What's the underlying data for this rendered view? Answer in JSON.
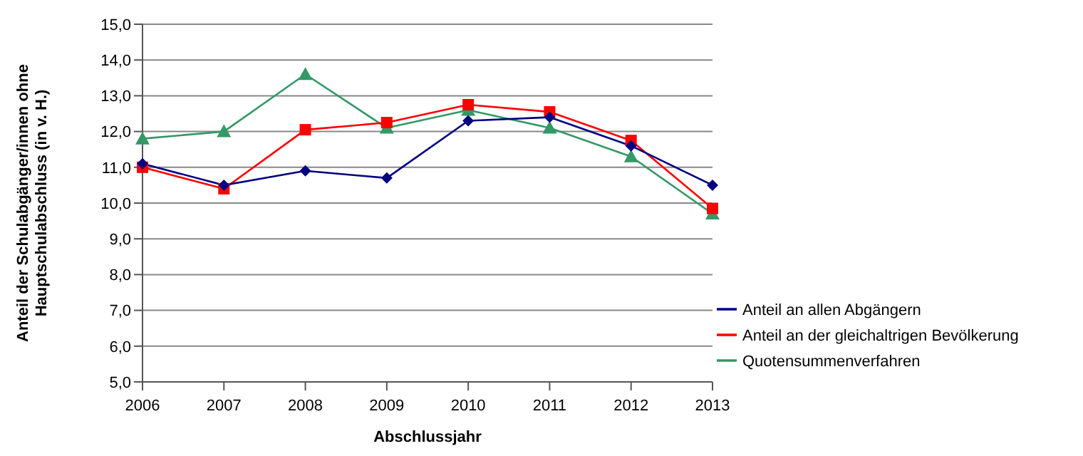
{
  "chart_data": {
    "type": "line",
    "xlabel": "Abschlussjahr",
    "ylabel": "Anteil der Schulabgänger/innen ohne\nHauptschulabschluss (in v. H.)",
    "categories": [
      "2006",
      "2007",
      "2008",
      "2009",
      "2010",
      "2011",
      "2012",
      "2013"
    ],
    "series": [
      {
        "name": "Anteil an allen Abgängern",
        "color": "#000080",
        "marker": "diamond",
        "values": [
          11.1,
          10.5,
          10.9,
          10.7,
          12.3,
          12.4,
          11.6,
          10.5
        ]
      },
      {
        "name": "Anteil an der gleichaltrigen Bevölkerung",
        "color": "#ff0000",
        "marker": "square",
        "values": [
          11.0,
          10.4,
          12.05,
          12.25,
          12.75,
          12.55,
          11.75,
          9.85
        ]
      },
      {
        "name": "Quotensummenverfahren",
        "color": "#339966",
        "marker": "triangle",
        "values": [
          11.8,
          12.0,
          13.6,
          12.1,
          12.6,
          12.1,
          11.3,
          9.7
        ]
      }
    ],
    "ylim": [
      5,
      15
    ],
    "yticks": [
      {
        "value": 5,
        "label": "5,0"
      },
      {
        "value": 6,
        "label": "6,0"
      },
      {
        "value": 7,
        "label": "7,0"
      },
      {
        "value": 8,
        "label": "8,0"
      },
      {
        "value": 9,
        "label": "9,0"
      },
      {
        "value": 10,
        "label": "10,0"
      },
      {
        "value": 11,
        "label": "11,0"
      },
      {
        "value": 12,
        "label": "12,0"
      },
      {
        "value": 13,
        "label": "13,0"
      },
      {
        "value": 14,
        "label": "14,0"
      },
      {
        "value": 15,
        "label": "15,0"
      }
    ],
    "grid": "y",
    "legend": "right"
  }
}
